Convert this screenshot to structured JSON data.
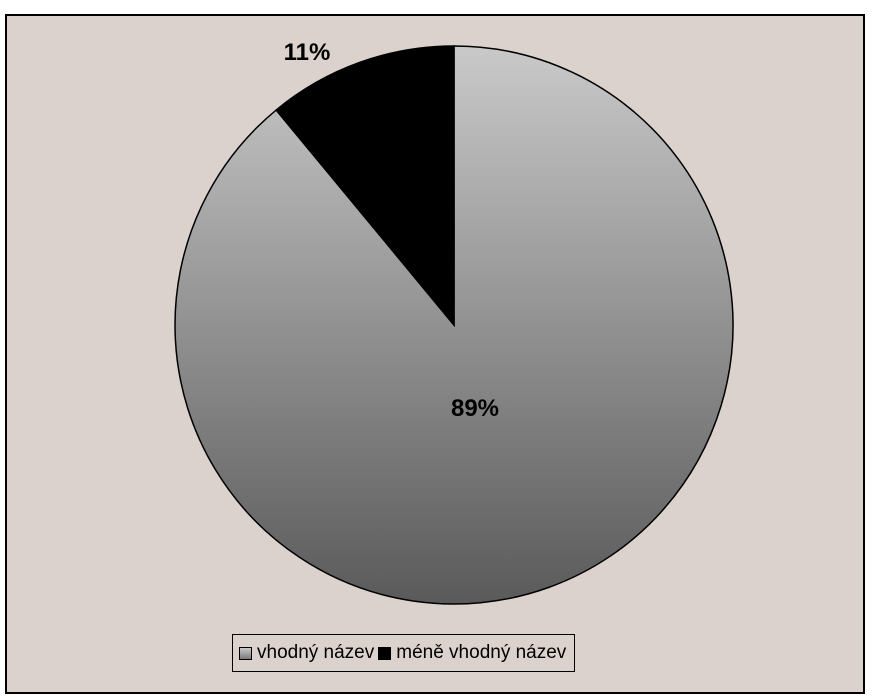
{
  "chart_data": {
    "type": "pie",
    "labels": [
      "vhodný název",
      "méně vhodný název"
    ],
    "values": [
      89,
      11
    ],
    "data_labels": [
      "89%",
      "11%"
    ],
    "colors": [
      "#9a9a9a",
      "#000000"
    ],
    "legend_position": "bottom",
    "start_angle": "12 o'clock",
    "direction": "clockwise"
  }
}
